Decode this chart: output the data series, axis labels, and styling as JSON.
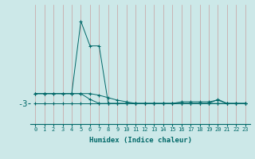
{
  "xlabel": "Humidex (Indice chaleur)",
  "x": [
    0,
    1,
    2,
    3,
    4,
    5,
    6,
    7,
    8,
    9,
    10,
    11,
    12,
    13,
    14,
    15,
    16,
    17,
    18,
    19,
    20,
    21,
    22,
    23
  ],
  "line_spike": {
    "x": [
      0,
      1,
      4,
      5,
      6,
      7,
      8,
      9,
      10,
      11,
      12,
      13,
      14,
      15,
      16,
      17,
      18,
      19,
      20,
      21,
      22,
      23
    ],
    "y": [
      -1.8,
      -1.8,
      -1.8,
      7.0,
      4.0,
      4.0,
      -3,
      -3,
      -3,
      -3,
      -3,
      -3,
      -3,
      -3,
      -3,
      -3,
      -3,
      -3,
      -2.5,
      -3,
      -3,
      -3
    ]
  },
  "line_slope": {
    "x": [
      0,
      1,
      2,
      3,
      4,
      5,
      6,
      7,
      8,
      9,
      10,
      11,
      12,
      13,
      14,
      15,
      16,
      17,
      18,
      19,
      20,
      21,
      22,
      23
    ],
    "y": [
      -1.8,
      -1.8,
      -1.8,
      -1.8,
      -1.8,
      -1.8,
      -1.8,
      -2.0,
      -2.3,
      -2.6,
      -2.8,
      -3.0,
      -3,
      -3,
      -3,
      -3,
      -2.8,
      -2.8,
      -2.8,
      -2.8,
      -2.6,
      -3,
      -3,
      -3
    ]
  },
  "line_flat1": {
    "x": [
      0,
      1,
      2,
      3,
      4,
      5,
      6,
      7,
      8,
      9,
      10,
      11,
      12,
      13,
      14,
      15,
      16,
      17,
      18,
      19,
      20,
      21,
      22,
      23
    ],
    "y": [
      -3,
      -3,
      -3,
      -3,
      -3,
      -3,
      -3,
      -3,
      -3,
      -3,
      -3,
      -3,
      -3,
      -3,
      -3,
      -3,
      -3,
      -3,
      -3,
      -3,
      -3,
      -3,
      -3,
      -3
    ]
  },
  "line_decay": {
    "x": [
      0,
      1,
      2,
      3,
      4,
      5,
      6,
      7,
      8,
      9,
      10,
      11,
      12,
      13,
      14,
      15,
      16,
      17,
      18,
      19,
      20,
      21,
      22,
      23
    ],
    "y": [
      -1.8,
      -1.8,
      -1.8,
      -1.8,
      -1.8,
      -1.8,
      -2.5,
      -3,
      -3,
      -3,
      -3,
      -3,
      -3,
      -3,
      -3,
      -3,
      -3,
      -3,
      -3,
      -3,
      -3,
      -3,
      -3,
      -3
    ]
  },
  "color": "#006868",
  "bg_color": "#cce8e8",
  "grid_color": "#b8c8c8",
  "ytick_label": "-3",
  "ytick_val": -3,
  "ylim": [
    -5.5,
    9.0
  ],
  "yticks": [
    -3
  ]
}
